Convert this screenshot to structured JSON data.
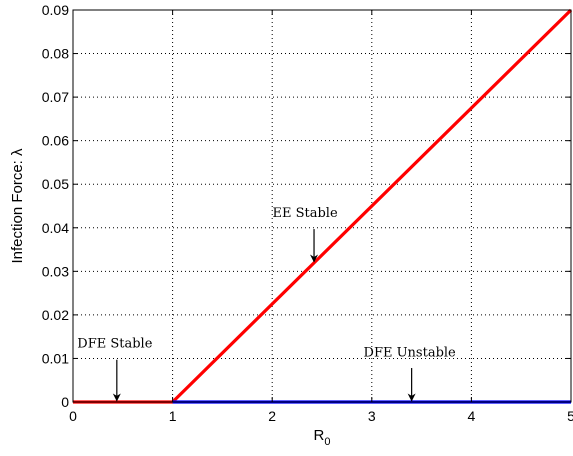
{
  "chart_data": {
    "type": "line",
    "xlabel": "R",
    "xlabel_sub": "0",
    "ylabel": "Infection Force: λ",
    "xlim": [
      0,
      5
    ],
    "ylim": [
      0,
      0.09
    ],
    "x_ticks": [
      0,
      1,
      2,
      3,
      4,
      5
    ],
    "x_tick_labels": [
      "0",
      "1",
      "2",
      "3",
      "4",
      "5"
    ],
    "y_ticks": [
      0,
      0.01,
      0.02,
      0.03,
      0.04,
      0.05,
      0.06,
      0.07,
      0.08,
      0.09
    ],
    "y_tick_labels": [
      "0",
      "0.01",
      "0.02",
      "0.03",
      "0.04",
      "0.05",
      "0.06",
      "0.07",
      "0.08",
      "0.09"
    ],
    "grid": true,
    "series": [
      {
        "color": "#ff0000",
        "x": [
          0,
          1,
          5
        ],
        "y": [
          0,
          0,
          0.09
        ]
      },
      {
        "color": "#0000ff",
        "x": [
          1,
          5
        ],
        "y": [
          0,
          0
        ]
      }
    ],
    "annotations": [
      {
        "text": "DFE Stable",
        "text_x": 0.42,
        "text_y": 0.0125,
        "arrow_from": [
          0.44,
          0.0097
        ],
        "arrow_to": [
          0.44,
          0.0003
        ]
      },
      {
        "text": "EE Stable",
        "text_x": 2.33,
        "text_y": 0.0425,
        "arrow_from": [
          2.42,
          0.0397
        ],
        "arrow_to": [
          2.42,
          0.0322
        ]
      },
      {
        "text": "DFE Unstable",
        "text_x": 3.38,
        "text_y": 0.0105,
        "arrow_from": [
          3.4,
          0.0078
        ],
        "arrow_to": [
          3.4,
          0.0003
        ]
      }
    ]
  }
}
